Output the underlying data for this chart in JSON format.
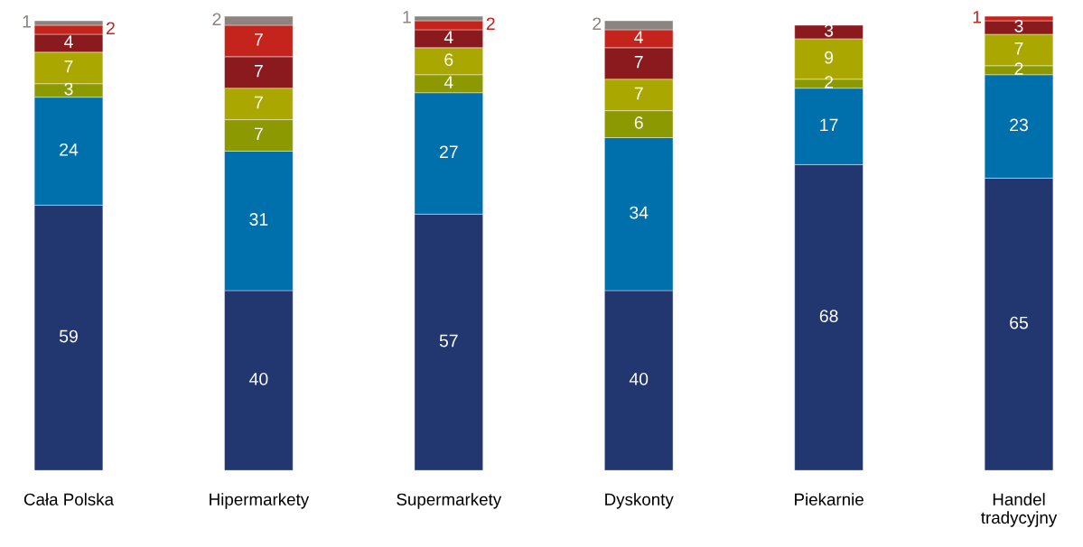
{
  "chart_data": {
    "type": "bar",
    "stacked": true,
    "data_labels": true,
    "categories": [
      "Cała Polska",
      "Hipermarkety",
      "Supermarkety",
      "Dyskonty",
      "Piekarnie",
      "Handel\ntradycyjny"
    ],
    "series": [
      {
        "color": "#22366f",
        "values": [
          59,
          40,
          57,
          40,
          68,
          65
        ]
      },
      {
        "color": "#0070ad",
        "values": [
          24,
          31,
          27,
          34,
          17,
          23
        ]
      },
      {
        "color": "#8c9900",
        "values": [
          3,
          7,
          4,
          6,
          2,
          2
        ]
      },
      {
        "color": "#aaa800",
        "values": [
          7,
          7,
          6,
          7,
          9,
          7
        ]
      },
      {
        "color": "#8b1a1e",
        "values": [
          4,
          7,
          4,
          7,
          3,
          3
        ]
      },
      {
        "color": "#c4241c",
        "values": [
          2,
          7,
          2,
          4,
          null,
          1
        ]
      },
      {
        "color": "#8c8480",
        "values": [
          1,
          2,
          1,
          2,
          null,
          null
        ]
      }
    ]
  }
}
